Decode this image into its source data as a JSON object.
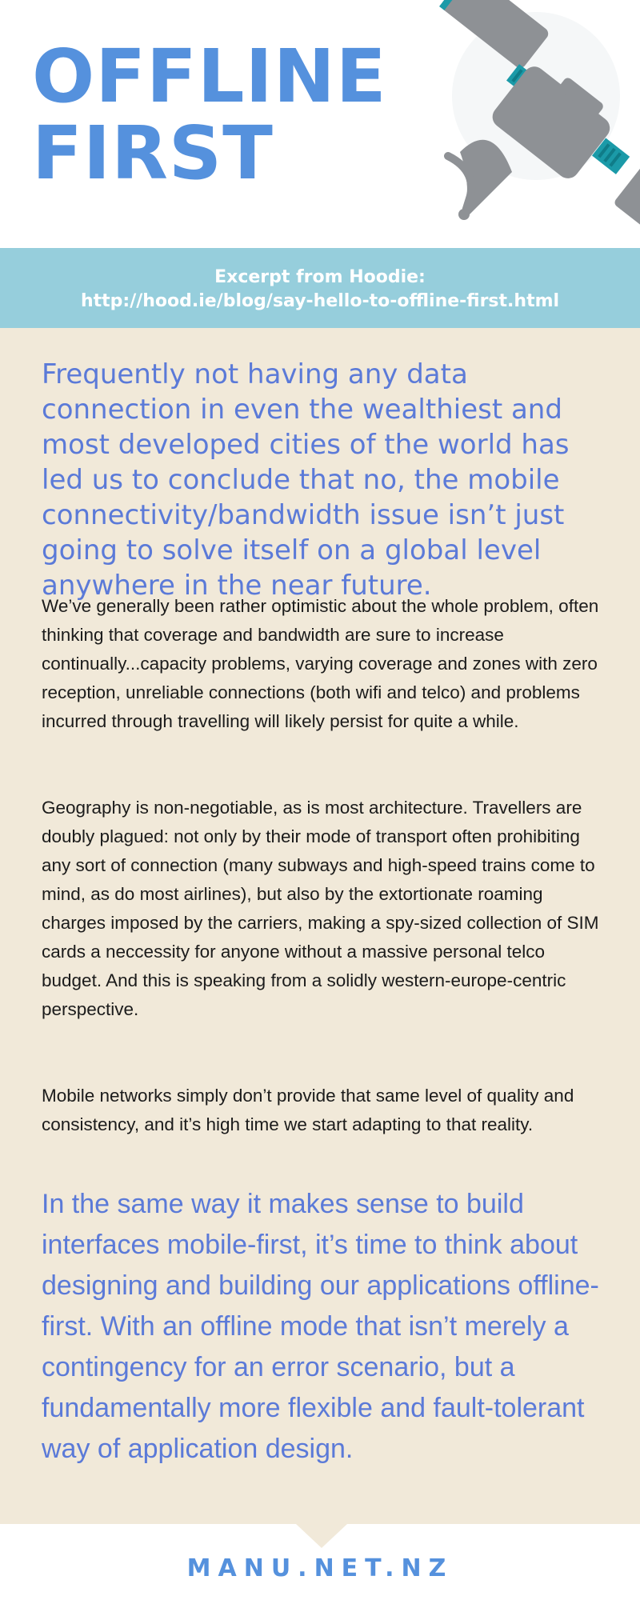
{
  "header": {
    "title_line1": "OFFLINE",
    "title_line2": "FIRST",
    "illustration_icon": "satellite-icon"
  },
  "source": {
    "line1": "Excerpt from Hoodie:",
    "line2": "http://hood.ie/blog/say-hello-to-offline-first.html"
  },
  "body": {
    "lead": "Frequently not having any data connection in even the wealthiest and most developed cities of the world has led us to conclude that no, the mobile connectivity/bandwidth issue isn’t just going to solve itself on a global level anywhere in the near future.",
    "paragraphs": [
      "We’ve generally been rather optimistic about the whole problem, often thinking that coverage and bandwidth are sure to increase continually...capacity problems, varying coverage and zones with zero reception, unreliable connections (both wifi and telco) and problems incurred through travelling will likely persist for quite a while.",
      "Geography is non-negotiable, as is most architecture. Travellers are doubly plagued: not only by their mode of transport often prohibiting any sort of connection (many subways and high-speed trains come to mind, as do most airlines), but also by the extortionate roaming charges imposed by the carriers, making a spy-sized collection of SIM cards a neccessity for anyone without a massive personal telco budget. And this is speaking from a solidly western-europe-centric perspective.",
      "Mobile networks simply don’t provide that same level of quality and consistency, and it’s high time we start adapting to that reality."
    ],
    "closing": "In the same way it makes sense to build interfaces mobile-first, it’s time to think about designing and building our applications offline-first. With an offline mode that isn’t merely a contingency for an error scenario, but a fundamentally more flexible and fault-tolerant way of application design."
  },
  "footer": {
    "site": "MANU.NET.NZ"
  },
  "colors": {
    "accent_blue": "#5591dd",
    "text_blue": "#5b7ad8",
    "band": "#96cedc",
    "content_bg": "#f1e9d9",
    "satellite_grey": "#8e9195",
    "satellite_teal": "#1b9aa8"
  }
}
